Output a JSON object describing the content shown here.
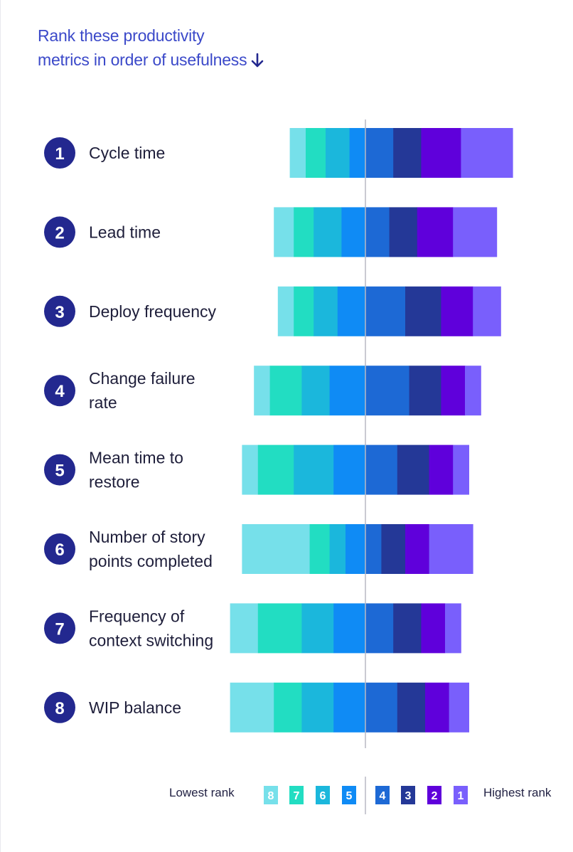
{
  "title": {
    "line1": "Rank these productivity",
    "line2": "metrics in order of usefulness"
  },
  "colors": {
    "title": "#3b49c9",
    "badge": "#23288f",
    "rank8": "#76e0ea",
    "rank7": "#22ddc2",
    "rank6": "#1bb7dc",
    "rank5": "#0f8bf5",
    "rank4": "#1d69d5",
    "rank3": "#243897",
    "rank2": "#5f00db",
    "rank1": "#795ffc"
  },
  "legend": {
    "lowest_label": "Lowest rank",
    "highest_label": "Highest rank",
    "ranks_left": [
      "8",
      "7",
      "6",
      "5"
    ],
    "ranks_right": [
      "4",
      "3",
      "2",
      "1"
    ]
  },
  "chart_data": {
    "type": "bar",
    "layout": "diverging-stacked",
    "segments_order": [
      "8",
      "7",
      "6",
      "5",
      "4",
      "3",
      "2",
      "1"
    ],
    "rows": [
      {
        "rank": "1",
        "label": [
          "Cycle time"
        ],
        "values": [
          4,
          5,
          6,
          4,
          7,
          7,
          10,
          13
        ]
      },
      {
        "rank": "2",
        "label": [
          "Lead time"
        ],
        "values": [
          5,
          5,
          7,
          6,
          6,
          7,
          9,
          11
        ]
      },
      {
        "rank": "3",
        "label": [
          "Deploy frequency"
        ],
        "values": [
          4,
          5,
          6,
          7,
          10,
          9,
          8,
          7
        ]
      },
      {
        "rank": "4",
        "label": [
          "Change failure",
          "rate"
        ],
        "values": [
          4,
          8,
          7,
          9,
          11,
          8,
          6,
          4
        ]
      },
      {
        "rank": "5",
        "label": [
          "Mean time to",
          "restore"
        ],
        "values": [
          4,
          9,
          10,
          8,
          8,
          8,
          6,
          4
        ]
      },
      {
        "rank": "6",
        "label": [
          "Number of story",
          "points completed"
        ],
        "values": [
          17,
          5,
          4,
          5,
          4,
          6,
          6,
          11
        ]
      },
      {
        "rank": "7",
        "label": [
          "Frequency of",
          "context switching"
        ],
        "values": [
          7,
          11,
          8,
          8,
          7,
          7,
          6,
          4
        ]
      },
      {
        "rank": "8",
        "label": [
          "WIP balance"
        ],
        "values": [
          11,
          7,
          8,
          8,
          8,
          7,
          6,
          5
        ]
      }
    ]
  }
}
